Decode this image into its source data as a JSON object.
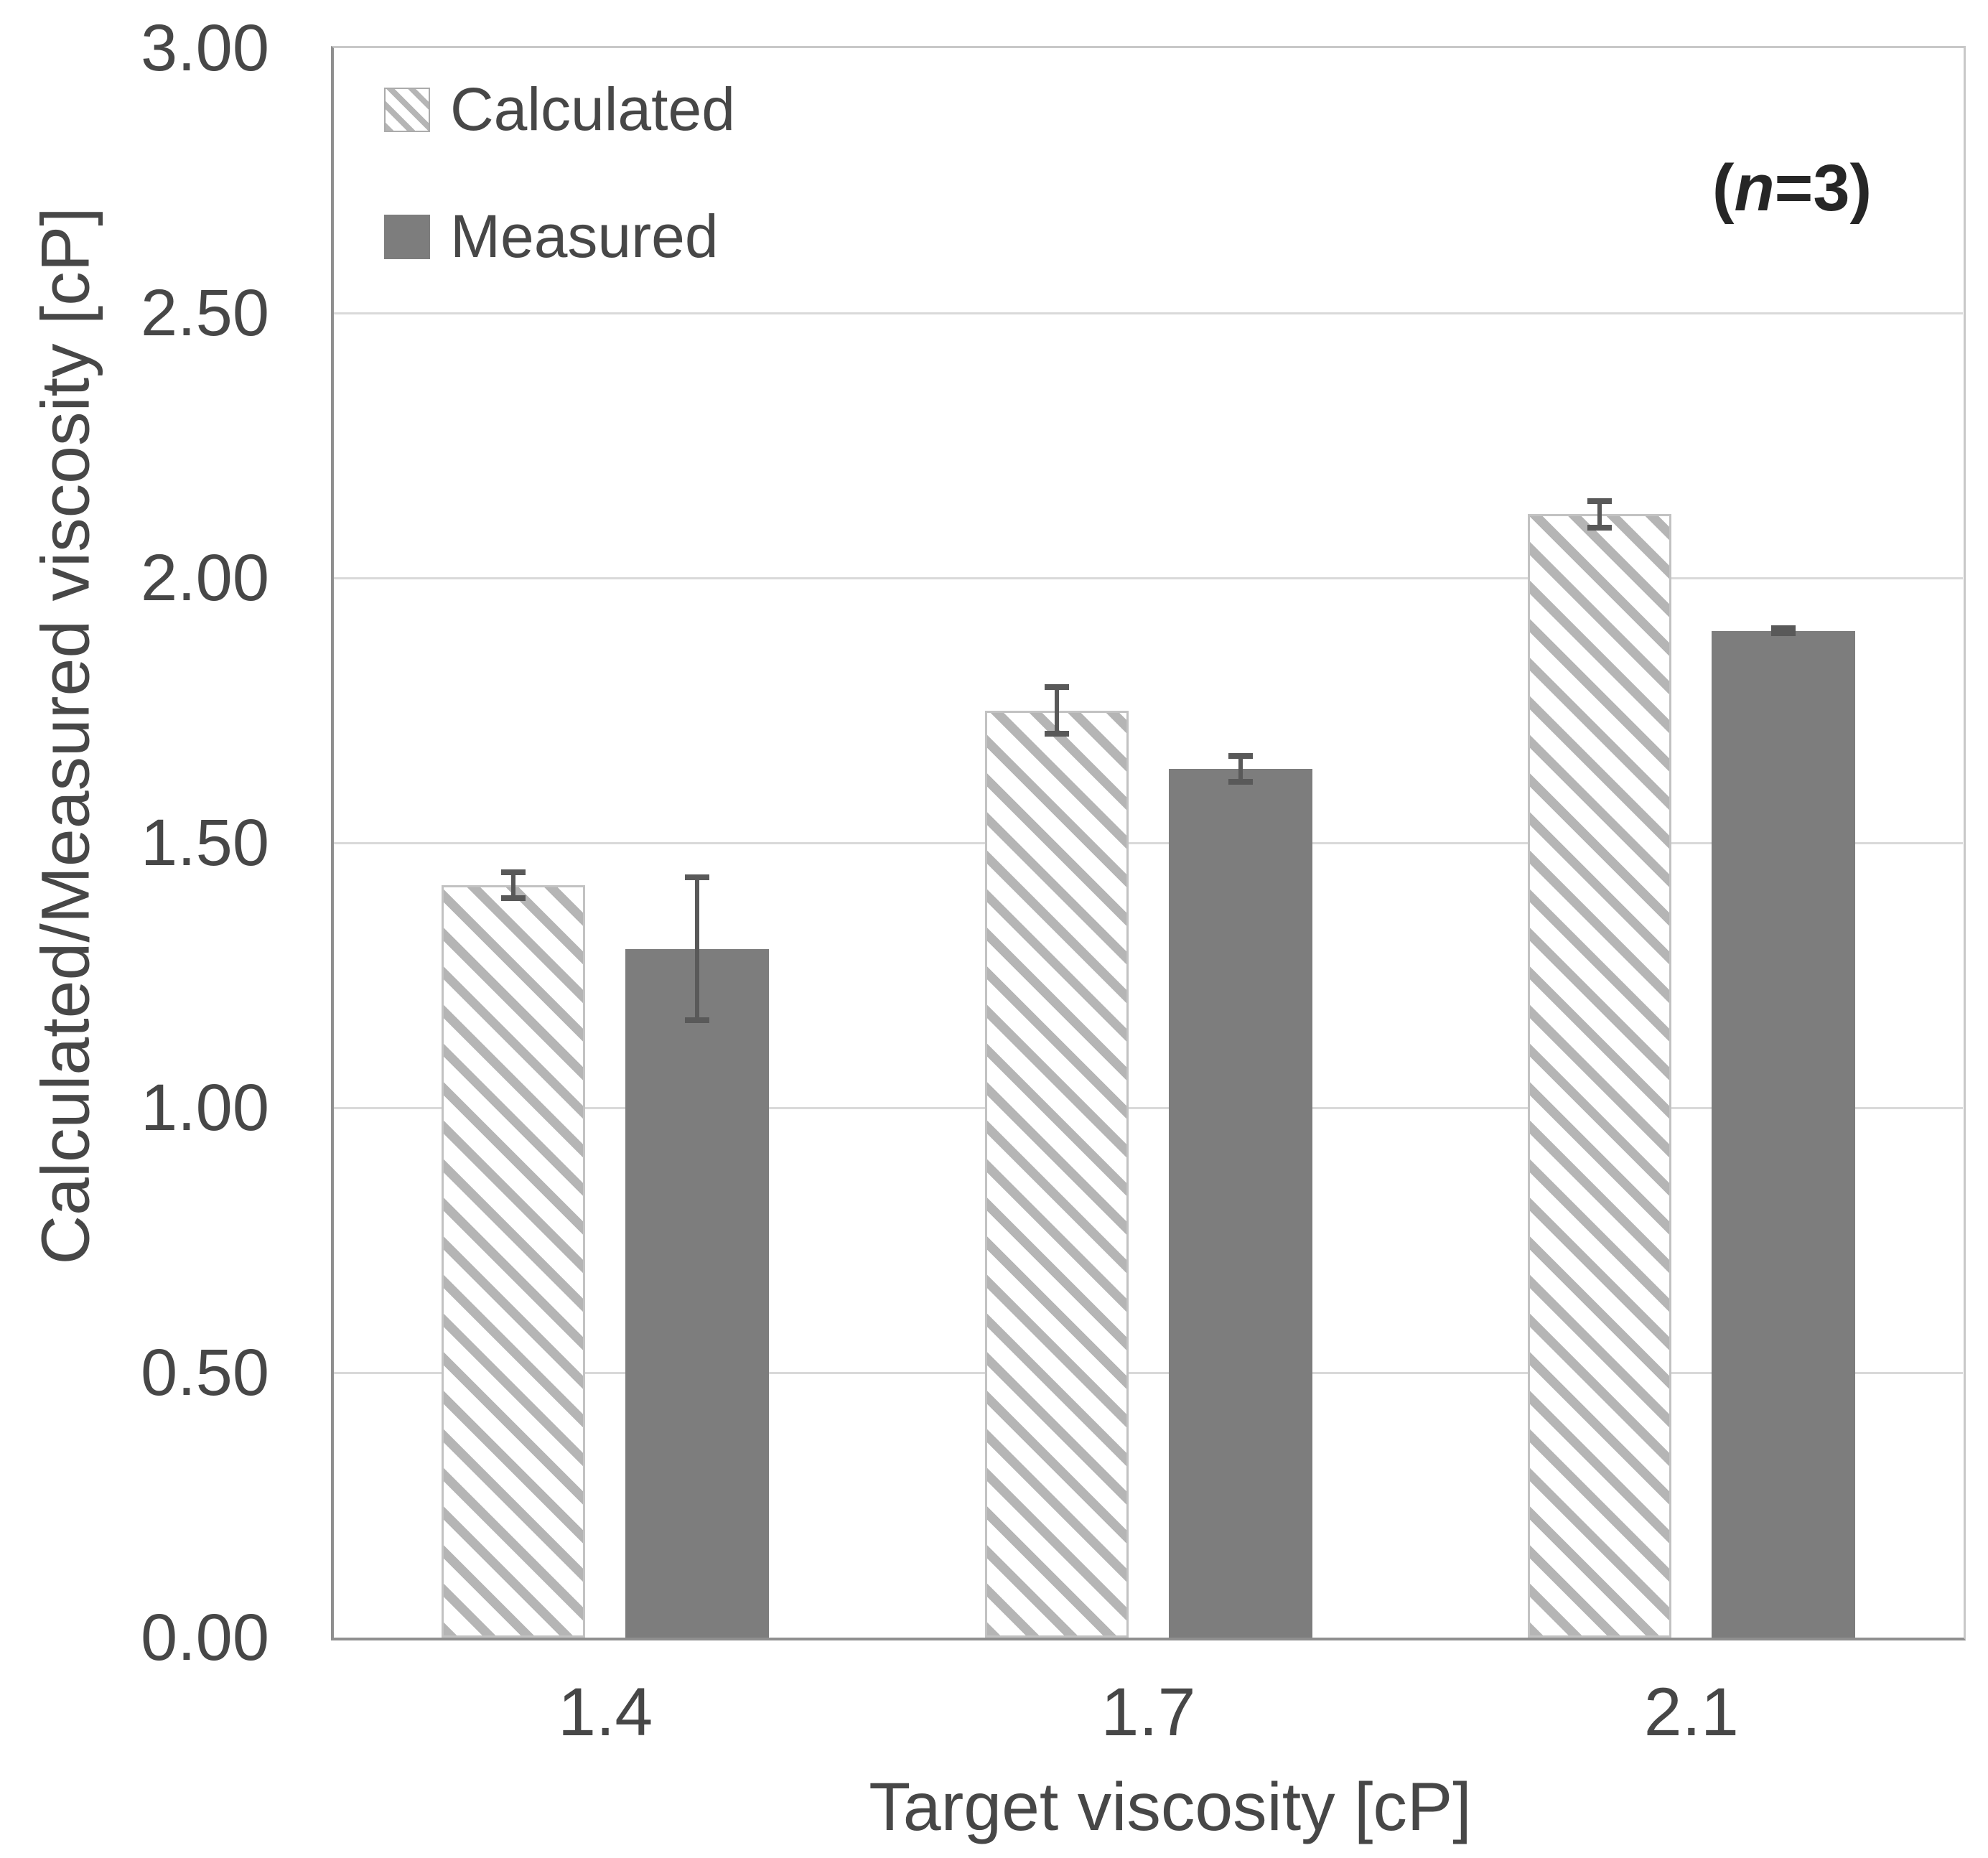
{
  "chart_data": {
    "type": "bar",
    "title": "",
    "categories": [
      "1.4",
      "1.7",
      "2.1"
    ],
    "series": [
      {
        "name": "Calculated",
        "style": "hatched",
        "values": [
          1.42,
          1.75,
          2.12
        ],
        "errors": [
          0.03,
          0.05,
          0.03
        ]
      },
      {
        "name": "Measured",
        "style": "solid",
        "values": [
          1.3,
          1.64,
          1.9
        ],
        "errors": [
          0.14,
          0.03,
          0.01
        ]
      }
    ],
    "xlabel": "Target viscosity [cP]",
    "ylabel": "Calculated/Measured viscosity [cP]",
    "ylim": [
      0,
      3
    ],
    "ytick_step": 0.5,
    "ytick_labels": [
      "0.00",
      "0.50",
      "1.00",
      "1.50",
      "2.00",
      "2.50",
      "3.00"
    ],
    "annotation": {
      "open": "(",
      "var": "n",
      "rest": "=3)",
      "text": "(n=3)"
    },
    "legend_position": "top-left",
    "grid": true,
    "colors": {
      "measured_fill": "#7d7d7d",
      "hatch_stripe": "#b5b5b5",
      "gridline": "#d9d9d9",
      "axis_line": "#8f8f8f",
      "plot_border": "#c8c8c8",
      "error_bar": "#595959",
      "text": "#474747",
      "annotation_text": "#262626"
    }
  }
}
